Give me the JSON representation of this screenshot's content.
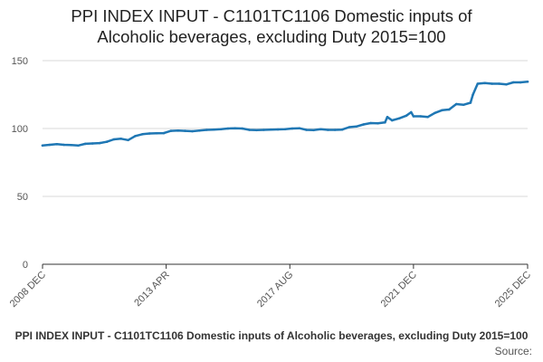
{
  "header": {
    "title_line1": "PPI INDEX INPUT - C1101TC1106 Domestic inputs of",
    "title_line2": "Alcoholic beverages, excluding Duty 2015=100"
  },
  "footer": {
    "series_title": "PPI INDEX INPUT - C1101TC1106 Domestic inputs of Alcoholic beverages, excluding Duty 2015=100",
    "source_label": "Source:"
  },
  "colors": {
    "line": "#1f77b4",
    "grid": "#d9d9d9",
    "axis": "#333333"
  },
  "chart_data": {
    "type": "line",
    "title": "PPI INDEX INPUT - C1101TC1106 Domestic inputs of Alcoholic beverages, excluding Duty 2015=100",
    "xlabel": "",
    "ylabel": "",
    "ylim": [
      0,
      150
    ],
    "yticks": [
      0,
      50,
      100,
      150
    ],
    "xlim": [
      "2008-12",
      "2025-12"
    ],
    "xticks": [
      {
        "date": "2008-12",
        "label": "2008 DEC"
      },
      {
        "date": "2013-04",
        "label": "2013 APR"
      },
      {
        "date": "2017-08",
        "label": "2017 AUG"
      },
      {
        "date": "2021-12",
        "label": "2021 DEC"
      },
      {
        "date": "2025-12",
        "label": "2025 DEC"
      }
    ],
    "grid": true,
    "legend": "none",
    "series": [
      {
        "points": [
          [
            "2008-12",
            87.5
          ],
          [
            "2009-03",
            88.0
          ],
          [
            "2009-06",
            88.5
          ],
          [
            "2009-09",
            88.0
          ],
          [
            "2009-12",
            87.8
          ],
          [
            "2010-03",
            87.5
          ],
          [
            "2010-06",
            88.7
          ],
          [
            "2010-09",
            89.0
          ],
          [
            "2010-12",
            89.3
          ],
          [
            "2011-03",
            90.2
          ],
          [
            "2011-06",
            92.0
          ],
          [
            "2011-09",
            92.5
          ],
          [
            "2011-12",
            91.5
          ],
          [
            "2012-03",
            94.5
          ],
          [
            "2012-06",
            95.8
          ],
          [
            "2012-09",
            96.3
          ],
          [
            "2012-12",
            96.5
          ],
          [
            "2013-03",
            96.6
          ],
          [
            "2013-06",
            98.3
          ],
          [
            "2013-09",
            98.5
          ],
          [
            "2013-12",
            98.3
          ],
          [
            "2014-03",
            98.0
          ],
          [
            "2014-06",
            98.5
          ],
          [
            "2014-09",
            99.0
          ],
          [
            "2014-12",
            99.2
          ],
          [
            "2015-03",
            99.5
          ],
          [
            "2015-06",
            100.0
          ],
          [
            "2015-09",
            100.2
          ],
          [
            "2015-12",
            100.0
          ],
          [
            "2016-03",
            99.0
          ],
          [
            "2016-06",
            98.8
          ],
          [
            "2016-09",
            99.0
          ],
          [
            "2016-12",
            99.2
          ],
          [
            "2017-03",
            99.3
          ],
          [
            "2017-06",
            99.5
          ],
          [
            "2017-09",
            100.0
          ],
          [
            "2017-12",
            100.2
          ],
          [
            "2018-03",
            99.0
          ],
          [
            "2018-06",
            98.8
          ],
          [
            "2018-09",
            99.5
          ],
          [
            "2018-12",
            99.0
          ],
          [
            "2019-03",
            99.0
          ],
          [
            "2019-06",
            99.2
          ],
          [
            "2019-09",
            101.0
          ],
          [
            "2019-12",
            101.5
          ],
          [
            "2020-03",
            103.0
          ],
          [
            "2020-06",
            104.0
          ],
          [
            "2020-09",
            103.8
          ],
          [
            "2020-12",
            104.5
          ],
          [
            "2021-01",
            108.5
          ],
          [
            "2021-03",
            106.0
          ],
          [
            "2021-06",
            107.5
          ],
          [
            "2021-09",
            109.5
          ],
          [
            "2021-11",
            112.0
          ],
          [
            "2021-12",
            109.0
          ],
          [
            "2022-03",
            109.0
          ],
          [
            "2022-06",
            108.5
          ],
          [
            "2022-09",
            111.5
          ],
          [
            "2022-12",
            113.5
          ],
          [
            "2023-03",
            114.0
          ],
          [
            "2023-06",
            118.0
          ],
          [
            "2023-09",
            117.5
          ],
          [
            "2023-12",
            119.0
          ],
          [
            "2024-01",
            125.0
          ],
          [
            "2024-03",
            133.0
          ],
          [
            "2024-06",
            133.5
          ],
          [
            "2024-09",
            133.0
          ],
          [
            "2024-12",
            133.0
          ],
          [
            "2025-03",
            132.5
          ],
          [
            "2025-06",
            134.0
          ],
          [
            "2025-09",
            134.0
          ],
          [
            "2025-12",
            134.5
          ]
        ]
      }
    ]
  }
}
